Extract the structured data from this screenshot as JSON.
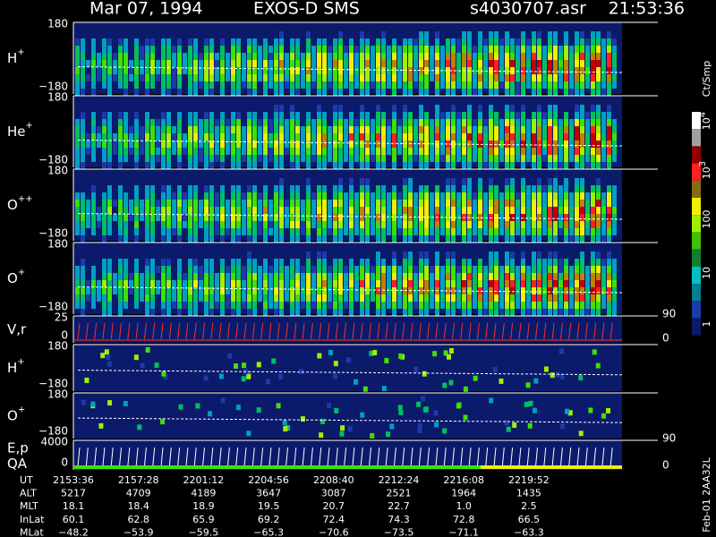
{
  "header": {
    "date": "Mar 07, 1994",
    "instrument": "EXOS-D SMS",
    "file": "s4030707.asr",
    "time": "21:53:36"
  },
  "panels": [
    {
      "type": "spectrum",
      "label": "H",
      "superscript": "+",
      "ticks": [
        "180",
        "−180"
      ]
    },
    {
      "type": "spectrum",
      "label": "He",
      "superscript": "+",
      "ticks": [
        "180",
        "−180"
      ]
    },
    {
      "type": "spectrum",
      "label": "O",
      "superscript": "++",
      "ticks": [
        "180",
        "−180"
      ]
    },
    {
      "type": "spectrum",
      "label": "O",
      "superscript": "+",
      "ticks": [
        "180",
        "−180"
      ]
    },
    {
      "type": "sweep",
      "label": "V,r",
      "ticks": [
        "25",
        "0"
      ],
      "right_ticks": [
        "90",
        "0"
      ],
      "color": "#ff3020"
    },
    {
      "type": "sparse",
      "label": "H",
      "superscript": "+",
      "ticks": [
        "180",
        "−180"
      ]
    },
    {
      "type": "sparse",
      "label": "O",
      "superscript": "+",
      "ticks": [
        "180",
        "−180"
      ]
    },
    {
      "type": "sweep",
      "label": "E,p",
      "label2": "QA",
      "ticks": [
        "4000",
        "0"
      ],
      "right_ticks": [
        "90",
        "0"
      ],
      "color": "#ffffff"
    }
  ],
  "colorbar": {
    "unit": "Ct/Smp",
    "labels": [
      {
        "base": "10",
        "exp": "4"
      },
      {
        "base": "10",
        "exp": "3"
      },
      {
        "base": "100"
      },
      {
        "base": "10"
      },
      {
        "base": "1"
      }
    ]
  },
  "ephemeris": [
    {
      "name": "UT",
      "values": [
        "2153:36",
        "2157:28",
        "2201:12",
        "2204:56",
        "2208:40",
        "2212:24",
        "2216:08",
        "2219:52"
      ]
    },
    {
      "name": "ALT",
      "values": [
        "5217",
        "4709",
        "4189",
        "3647",
        "3087",
        "2521",
        "1964",
        "1435"
      ]
    },
    {
      "name": "MLT",
      "values": [
        "18.1",
        "18.4",
        "18.9",
        "19.5",
        "20.7",
        "22.7",
        "1.0",
        "2.5"
      ]
    },
    {
      "name": "InLat",
      "values": [
        "60.1",
        "62.8",
        "65.9",
        "69.2",
        "72.4",
        "74.3",
        "72.8",
        "66.5"
      ]
    },
    {
      "name": "MLat",
      "values": [
        "−48.2",
        "−53.9",
        "−59.5",
        "−65.3",
        "−70.6",
        "−73.5",
        "−71.1",
        "−63.3"
      ]
    }
  ],
  "footer": "Feb-01 2AA32L"
}
